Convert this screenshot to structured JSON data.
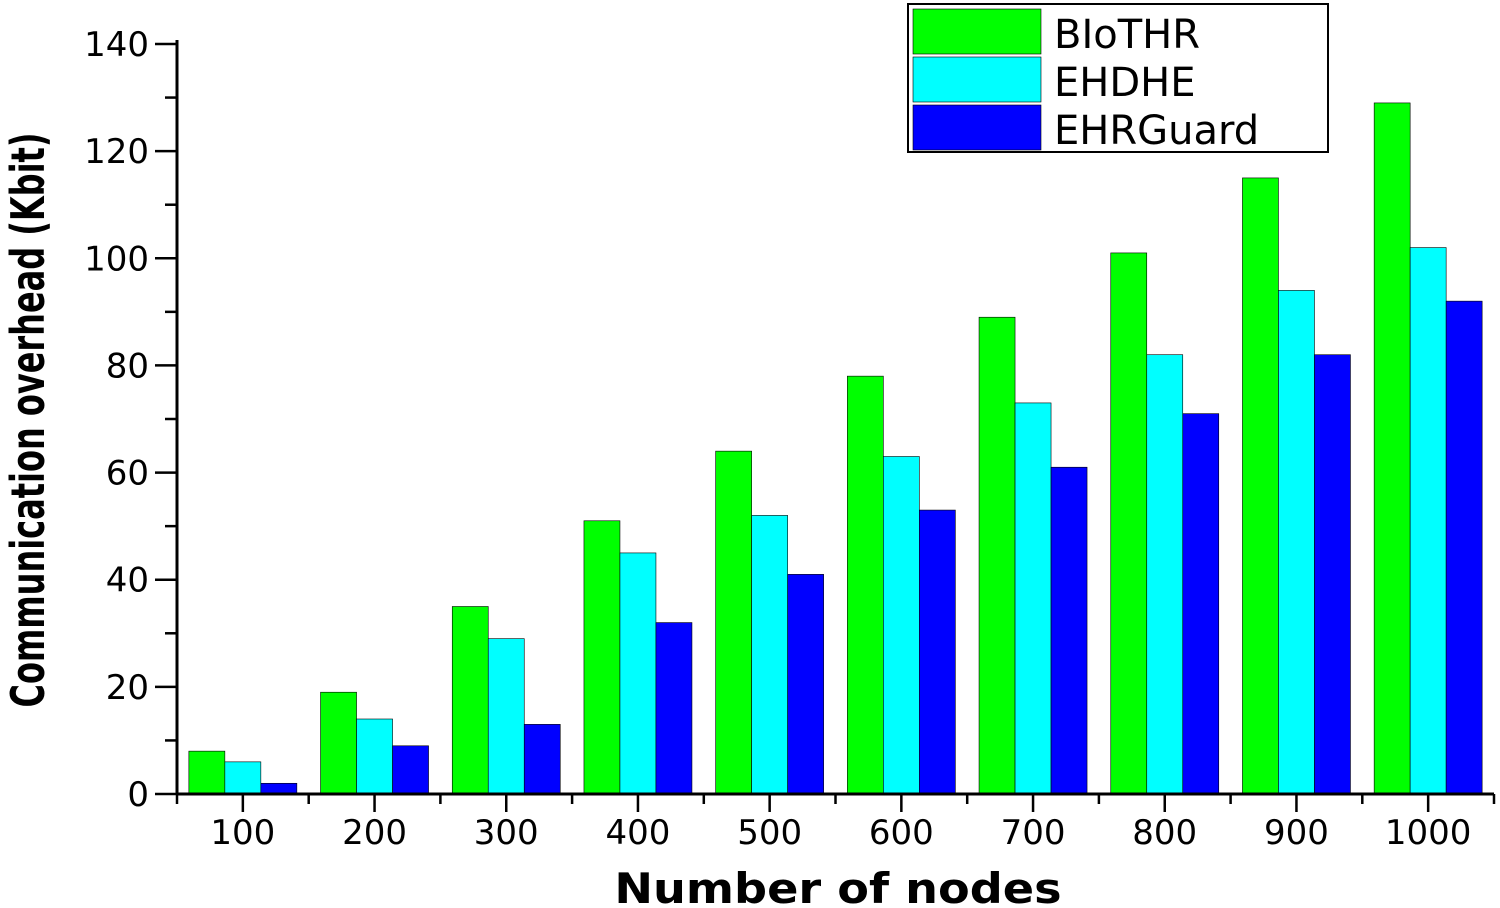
{
  "chart_data": {
    "type": "bar",
    "title": "",
    "xlabel": "Number of nodes",
    "ylabel": "Communication overhead (Kbit)",
    "categories": [
      "100",
      "200",
      "300",
      "400",
      "500",
      "600",
      "700",
      "800",
      "900",
      "1000"
    ],
    "series": [
      {
        "name": "BIoTHR",
        "color": "#00ff00",
        "values": [
          8,
          19,
          35,
          51,
          64,
          78,
          89,
          101,
          115,
          129
        ]
      },
      {
        "name": "EHDHE",
        "color": "#00ffff",
        "values": [
          6,
          14,
          29,
          45,
          52,
          63,
          73,
          82,
          94,
          102
        ]
      },
      {
        "name": "EHRGuard",
        "color": "#0000ff",
        "values": [
          2,
          9,
          13,
          32,
          41,
          53,
          61,
          71,
          82,
          92
        ]
      }
    ],
    "ylim": [
      0,
      140
    ],
    "yticks": [
      "0",
      "20",
      "40",
      "60",
      "80",
      "100",
      "120",
      "140"
    ],
    "grid": false,
    "legend_position": "top-right"
  }
}
